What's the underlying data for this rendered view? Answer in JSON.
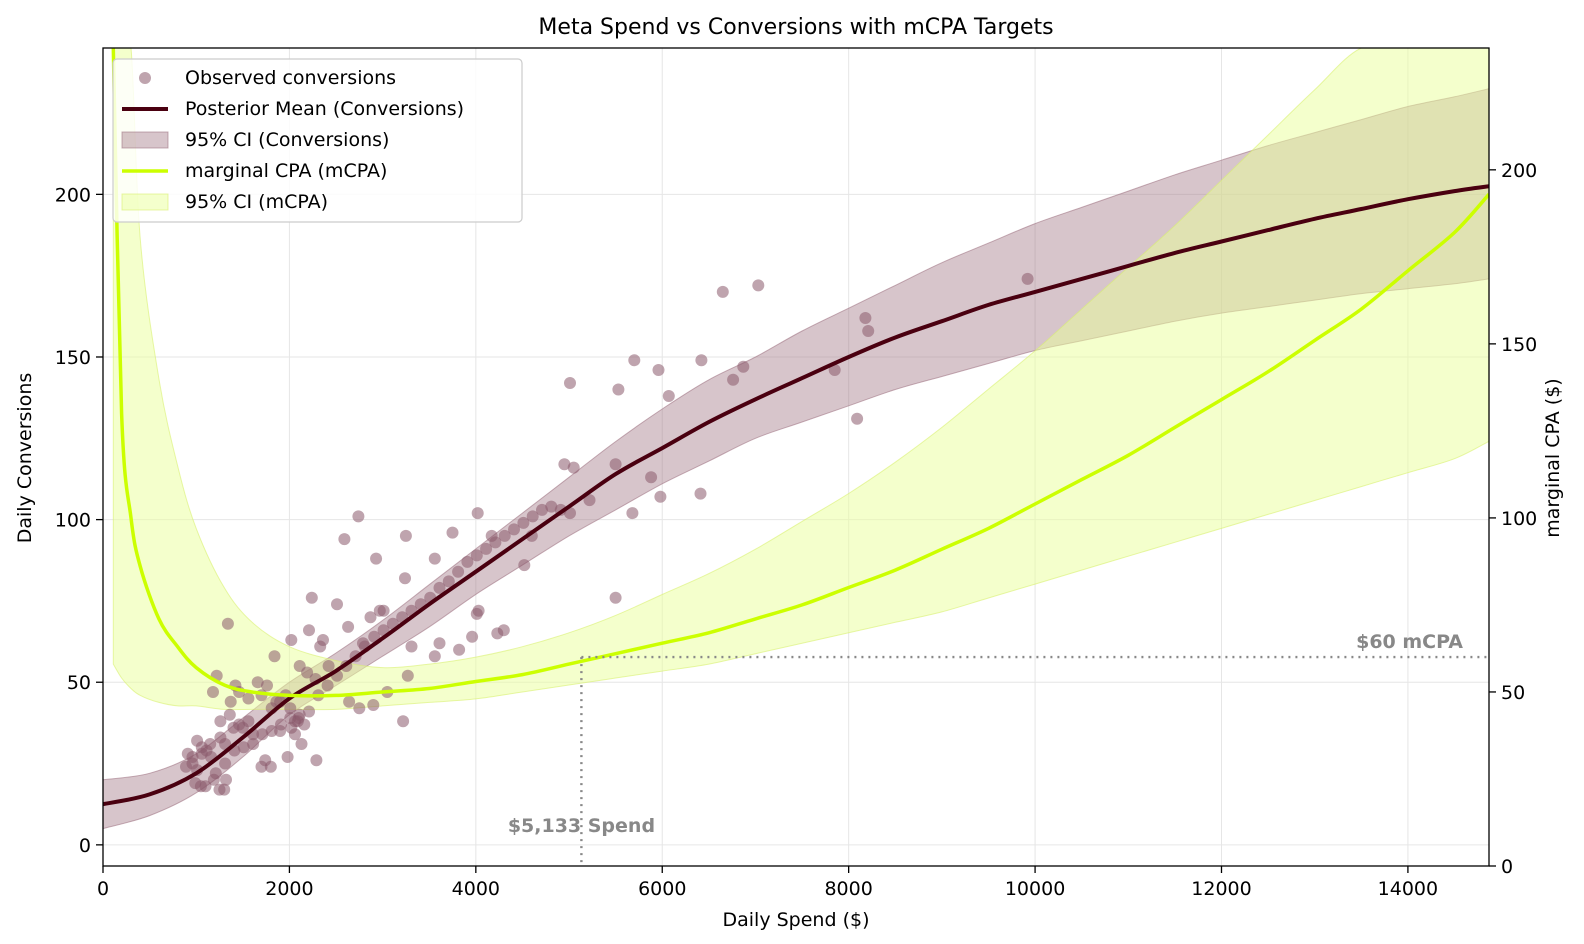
{
  "chart_data": {
    "type": "scatter+line",
    "title": "Meta Spend vs Conversions with mCPA Targets",
    "xlabel": "Daily Spend ($)",
    "ylabel": "Daily Conversions",
    "y2label": "marginal CPA ($)",
    "xlim": [
      0,
      14870
    ],
    "ylim": [
      -6.5,
      245
    ],
    "y2lim": [
      0,
      235
    ],
    "x_ticks": [
      0,
      2000,
      4000,
      6000,
      8000,
      10000,
      12000,
      14000
    ],
    "y_ticks": [
      0,
      50,
      100,
      150,
      200
    ],
    "y2_ticks": [
      0,
      50,
      100,
      150,
      200
    ],
    "grid": true,
    "legend_position": "top-left",
    "colors": {
      "scatter": "#8b5a6b",
      "posterior": "#4a0010",
      "posterior_band": "#a07584",
      "mcpa": "#ccff00",
      "mcpa_band": "#eaff9a",
      "reference": "#888888",
      "annotation": "#888888"
    },
    "legend": [
      {
        "label": "Observed conversions",
        "kind": "dot"
      },
      {
        "label": "Posterior Mean (Conversions)",
        "kind": "line-dark"
      },
      {
        "label": "95% CI (Conversions)",
        "kind": "band-dark"
      },
      {
        "label": "marginal CPA (mCPA)",
        "kind": "line-lime"
      },
      {
        "label": "95% CI (mCPA)",
        "kind": "band-lime"
      }
    ],
    "annotations": {
      "target_mcpa_label": "$60 mCPA",
      "target_mcpa_value": 60,
      "target_spend_label": "$5,133 Spend",
      "target_spend_value": 5133
    },
    "posterior_mean": {
      "x": [
        0,
        500,
        1000,
        1500,
        2000,
        2500,
        3000,
        3500,
        4000,
        4500,
        5000,
        5500,
        6000,
        6500,
        7000,
        7500,
        8000,
        8500,
        9000,
        9500,
        10000,
        10500,
        11000,
        11500,
        12000,
        12500,
        13000,
        13500,
        14000,
        14500,
        14870
      ],
      "y": [
        12.5,
        15.5,
        22,
        33,
        45,
        53.5,
        63.5,
        74,
        84,
        94,
        104,
        114,
        122,
        130,
        137,
        143.5,
        150,
        156,
        161,
        166,
        170,
        174,
        178,
        182,
        185.5,
        189,
        192.5,
        195.5,
        198.5,
        201,
        202.5
      ],
      "lower": [
        5,
        9,
        16,
        27,
        40,
        49,
        58,
        67,
        77,
        86,
        95,
        103,
        111,
        118,
        125,
        130,
        135,
        140,
        144,
        148,
        152,
        155,
        158,
        161,
        163.5,
        165.5,
        167.5,
        169.5,
        171,
        172.5,
        174
      ],
      "upper": [
        20,
        22,
        28,
        39,
        50,
        59,
        69,
        80,
        91,
        102,
        113,
        124,
        134,
        143,
        150,
        158,
        165,
        172,
        179,
        185,
        191,
        196,
        201,
        206,
        210.5,
        215,
        219,
        223,
        227,
        230,
        232.5
      ]
    },
    "mcpa": {
      "x": [
        110,
        200,
        300,
        400,
        600,
        800,
        1000,
        1300,
        1600,
        2000,
        2500,
        3000,
        3500,
        4000,
        4500,
        5000,
        5500,
        6000,
        6500,
        7000,
        7500,
        8000,
        8500,
        9000,
        9500,
        10000,
        10500,
        11000,
        11500,
        12000,
        12500,
        13000,
        13500,
        14000,
        14500,
        14870
      ],
      "y": [
        235,
        130,
        100,
        86,
        71,
        63,
        57,
        52,
        50,
        49,
        49,
        50,
        51,
        53,
        55,
        58,
        61,
        64,
        67,
        71,
        75,
        80,
        85,
        91,
        97,
        104,
        111,
        118,
        126,
        134,
        142,
        151,
        160,
        171,
        182,
        193
      ],
      "lower": [
        58,
        54,
        51,
        49,
        47,
        46,
        46,
        45,
        45,
        45,
        45,
        46,
        47,
        48,
        50,
        52,
        54,
        56,
        58,
        61,
        64,
        67,
        70,
        73,
        77,
        81,
        85,
        89,
        93,
        97,
        101,
        105,
        109,
        113,
        117,
        122
      ],
      "upper": [
        235,
        235,
        235,
        180,
        140,
        115,
        97,
        80,
        70,
        63,
        59,
        57,
        58,
        60,
        63,
        67,
        72,
        78,
        84,
        91,
        99,
        107,
        116,
        126,
        137,
        148,
        160,
        172,
        184,
        197,
        210,
        223,
        235,
        235,
        235,
        235
      ]
    },
    "observed": {
      "x": [
        1340,
        1220,
        1180,
        1420,
        1370,
        1460,
        1560,
        1660,
        1700,
        1760,
        1810,
        1860,
        1900,
        1960,
        2010,
        2060,
        2100,
        2160,
        1010,
        1060,
        960,
        910,
        1110,
        1150,
        1260,
        1310,
        1400,
        1500,
        1610,
        1260,
        1360,
        1460,
        1560,
        1010,
        960,
        1060,
        1160,
        1210,
        1310,
        1410,
        1510,
        1610,
        1710,
        1810,
        1910,
        2010,
        2110,
        2210,
        2310,
        2410,
        2510,
        2610,
        2710,
        2810,
        2910,
        3010,
        3110,
        3210,
        3310,
        3410,
        3510,
        3610,
        3710,
        3810,
        3910,
        4010,
        4110,
        4210,
        4310,
        4410,
        4510,
        4610,
        4710,
        4810,
        4910,
        5010,
        2210,
        2330,
        2510,
        2590,
        2740,
        2930,
        3010,
        3250,
        3560,
        3750,
        4020,
        4010,
        4170,
        2240,
        2360,
        2630,
        2790,
        2870,
        2970,
        3240,
        3310,
        3610,
        3960,
        4030,
        4230,
        4520,
        4600,
        5050,
        4950,
        5220,
        5500,
        5680,
        5880,
        5980,
        6070,
        6410,
        6420,
        6760,
        6870,
        5010,
        5530,
        5700,
        5960,
        5500,
        7030,
        6650,
        7850,
        8090,
        8180,
        8210,
        9920,
        1840,
        2020,
        2110,
        2190,
        2280,
        2420,
        1740,
        1980,
        2060,
        2130,
        2290,
        2900,
        3050,
        3270,
        3220,
        3560,
        3820,
        4300,
        1900,
        2020,
        2090,
        1700,
        1800,
        2640,
        2750,
        1320,
        1250,
        1300,
        1190,
        1100,
        1050,
        990,
        890
      ],
      "y": [
        68,
        52,
        47,
        49,
        44,
        47,
        45,
        50,
        46,
        49,
        42,
        44,
        44,
        46,
        42,
        38,
        39,
        37,
        32,
        30,
        27,
        28,
        29,
        31,
        33,
        31,
        36,
        36,
        34,
        38,
        40,
        37,
        38,
        23,
        25,
        28,
        27,
        22,
        25,
        29,
        30,
        31,
        34,
        35,
        37,
        39,
        40,
        41,
        46,
        49,
        52,
        55,
        58,
        61,
        64,
        66,
        68,
        70,
        72,
        74,
        76,
        79,
        81,
        84,
        87,
        89,
        91,
        93,
        95,
        97,
        99,
        101,
        103,
        104,
        103,
        102,
        66,
        61,
        74,
        94,
        101,
        88,
        72,
        95,
        88,
        96,
        102,
        71,
        95,
        76,
        63,
        67,
        62,
        70,
        72,
        82,
        61,
        62,
        64,
        72,
        65,
        86,
        95,
        116,
        117,
        106,
        117,
        102,
        113,
        107,
        138,
        108,
        149,
        143,
        147,
        142,
        140,
        149,
        146,
        76,
        172,
        170,
        146,
        131,
        162,
        158,
        174,
        58,
        63,
        55,
        53,
        51,
        55,
        26,
        27,
        34,
        31,
        26,
        43,
        47,
        52,
        38,
        58,
        60,
        66,
        35,
        36,
        38,
        24,
        24,
        44,
        42,
        20,
        17,
        17,
        20,
        18,
        18,
        19,
        24
      ]
    }
  }
}
